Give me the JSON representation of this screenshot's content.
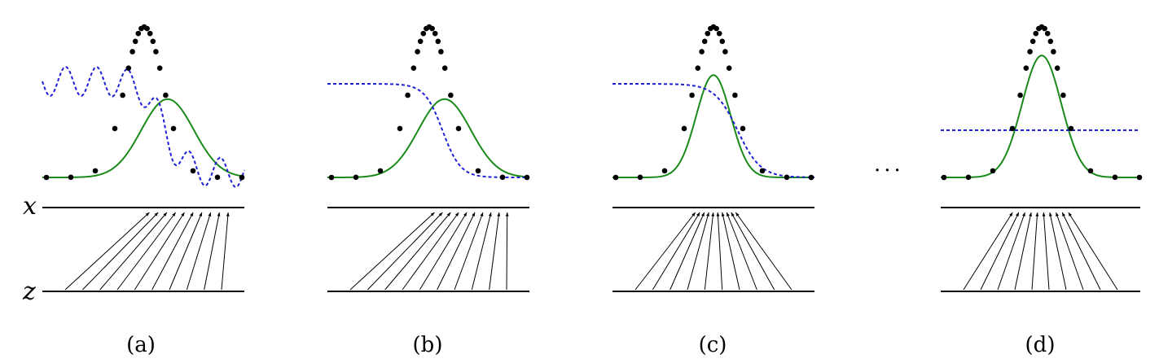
{
  "axis_labels": {
    "x": "x",
    "z": "z"
  },
  "ellipsis": "...",
  "colors": {
    "data_points": "#000000",
    "discriminator": "#1f1fd6",
    "generator": "#1a8a1a",
    "axis": "#000000"
  },
  "panels": [
    {
      "caption": "(a)",
      "discriminator": "wavy",
      "generator_mean_offset": 0.62,
      "generator_sigma": 0.13,
      "generator_peak": 0.52,
      "mapping": "right-shift"
    },
    {
      "caption": "(b)",
      "discriminator": "sigmoid",
      "generator_mean_offset": 0.58,
      "generator_sigma": 0.13,
      "generator_peak": 0.52,
      "mapping": "right-shift"
    },
    {
      "caption": "(c)",
      "discriminator": "sigmoid-close",
      "generator_mean_offset": 0.5,
      "generator_sigma": 0.085,
      "generator_peak": 0.68,
      "mapping": "near"
    },
    {
      "caption": "(d)",
      "discriminator": "flat",
      "generator_mean_offset": 0.5,
      "generator_sigma": 0.095,
      "generator_peak": 0.81,
      "mapping": "matched"
    }
  ]
}
